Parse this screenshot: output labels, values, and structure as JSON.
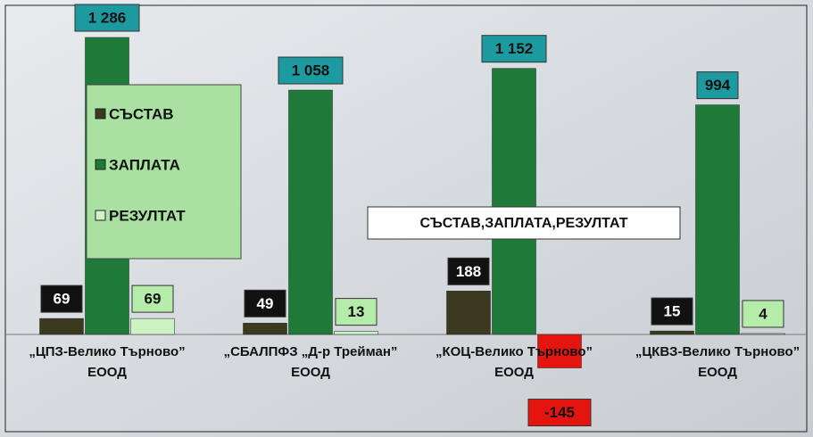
{
  "chart_data": {
    "type": "bar",
    "annotation": "СЪСТАВ,ЗАПЛАТА,РЕЗУЛТАТ",
    "categories": [
      "„ЦПЗ-Велико Търново” ЕООД",
      "„СБАЛПФЗ „Д-р Трейман” ЕООД",
      "„КОЦ-Велико Търново” ЕООД",
      "„ЦКВЗ-Велико Търново” ЕООД"
    ],
    "series": [
      {
        "name": "СЪСТАВ",
        "color": "#3b3a1f",
        "label_color": "#111111",
        "label_text": "#ffffff",
        "values": [
          69,
          49,
          188,
          15
        ]
      },
      {
        "name": "ЗАПЛАТА",
        "color": "#1f7a3a",
        "label_color": "#1c9aa0",
        "label_text": "#111111",
        "values": [
          1286,
          1058,
          1152,
          994
        ],
        "value_labels": [
          "1 286",
          "1 058",
          "1 152",
          "994"
        ]
      },
      {
        "name": "РЕЗУЛТАТ",
        "color": "#cdf2c4",
        "label_color": "#b6ecaa",
        "label_text": "#111111",
        "values": [
          69,
          13,
          -145,
          4
        ]
      }
    ],
    "negative_color": "#e4140e",
    "legend_color": "#a9e2a0"
  }
}
